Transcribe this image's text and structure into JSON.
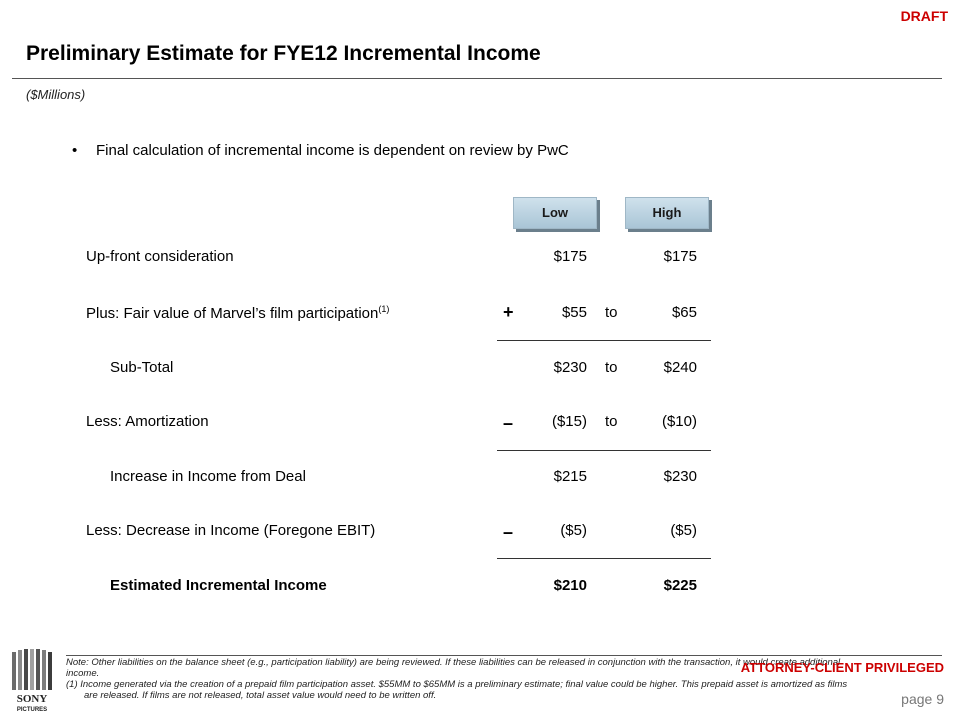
{
  "header": {
    "draft": "DRAFT",
    "title": "Preliminary Estimate for FYE12 Incremental Income",
    "subtitle": "($Millions)"
  },
  "bullet": "Final calculation of incremental income is dependent on review by PwC",
  "columns": {
    "low": "Low",
    "high": "High"
  },
  "rows": [
    {
      "label": "Up-front consideration",
      "low": "$175",
      "to": "",
      "high": "$175"
    },
    {
      "label": "Plus: Fair value of Marvel’s film participation",
      "note": "(1)",
      "operator": "+",
      "low": "$55",
      "to": "to",
      "high": "$65"
    },
    {
      "label": "Sub-Total",
      "low": "$230",
      "to": "to",
      "high": "$240"
    },
    {
      "label": "Less: Amortization",
      "operator": "–",
      "low": "($15)",
      "to": "to",
      "high": "($10)"
    },
    {
      "label": "Increase in Income from Deal",
      "low": "$215",
      "to": "",
      "high": "$230"
    },
    {
      "label": "Less: Decrease in Income (Foregone EBIT)",
      "operator": "–",
      "low": "($5)",
      "to": "",
      "high": "($5)"
    },
    {
      "label": "Estimated Incremental Income",
      "low": "$210",
      "to": "",
      "high": "$225"
    }
  ],
  "footer": {
    "note": "Note: Other liabilities on the balance sheet (e.g., participation liability) are being reviewed.  If these liabilities can be released in conjunction with the transaction, it would create additional income.",
    "footnote1": "(1) Income generated via the creation of a prepaid film participation asset. $55MM to $65MM is a preliminary estimate; final value could be higher. This prepaid asset is amortized as films are released. If films are not released, total asset value would need to be written off.",
    "privileged": "ATTORNEY-CLIENT PRIVILEGED",
    "page": "page 9",
    "logo_text_1": "SONY",
    "logo_text_2": "PICTURES"
  },
  "colors": {
    "accent_red": "#cc0000",
    "header_button": "#bcd4e2"
  }
}
